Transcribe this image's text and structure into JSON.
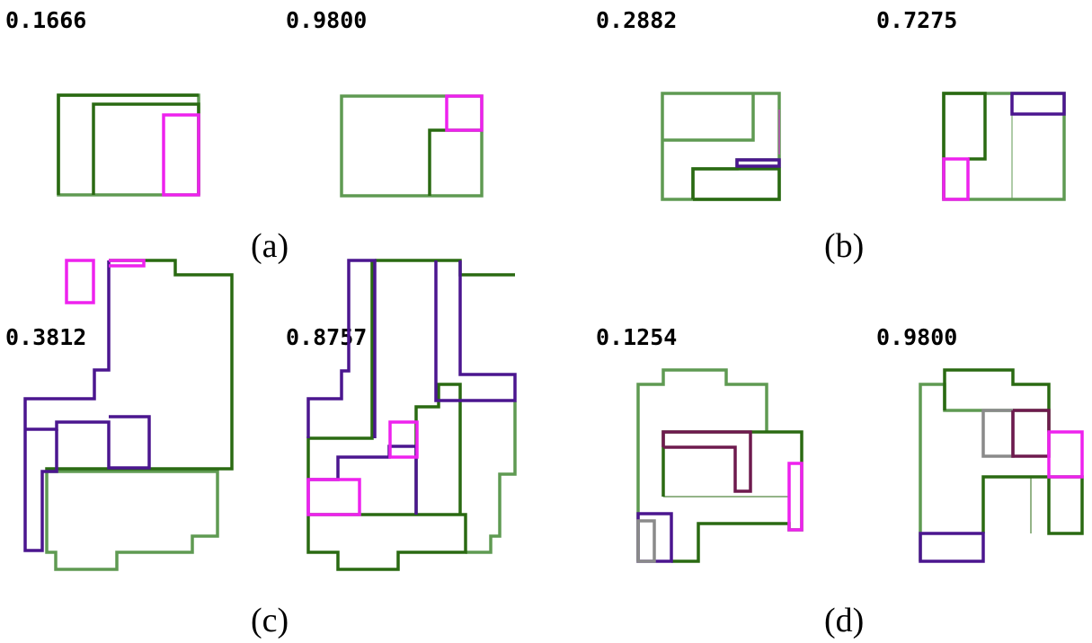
{
  "colors": {
    "light_green": "#5f9a52",
    "dark_green": "#2a6a12",
    "magenta": "#ee22ee",
    "purple": "#4b168f",
    "maroon": "#6e1a4e",
    "gray": "#8a8a8a"
  },
  "panels": [
    {
      "label": "(a)",
      "scores": [
        "0.1666",
        "0.9800"
      ]
    },
    {
      "label": "(b)",
      "scores": [
        "0.2882",
        "0.7275"
      ]
    },
    {
      "label": "(c)",
      "scores": [
        "0.3812",
        "0.8757"
      ]
    },
    {
      "label": "(d)",
      "scores": [
        "0.1254",
        "0.9800"
      ]
    }
  ]
}
